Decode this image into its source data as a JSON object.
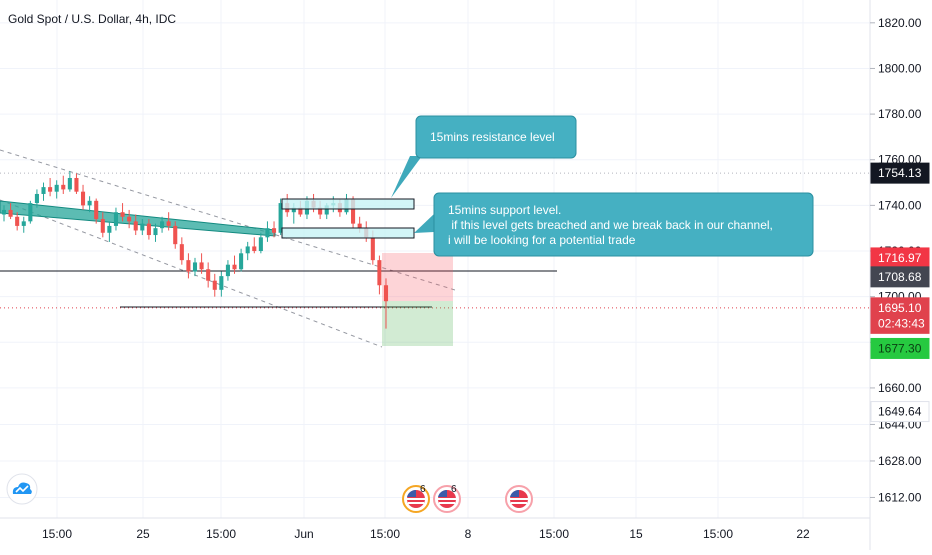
{
  "header": {
    "title": "Gold Spot / U.S. Dollar, 4h, IDC"
  },
  "chart_data": {
    "type": "candlestick",
    "symbol": "Gold Spot / U.S. Dollar",
    "timeframe": "4h",
    "source": "IDC",
    "y_axis": {
      "ylim": [
        1603,
        1830
      ],
      "ticks": [
        1612,
        1628,
        1644,
        1660,
        1680,
        1700,
        1720,
        1740,
        1760,
        1780,
        1800,
        1820
      ],
      "tick_labels": [
        "1612.00",
        "1628.00",
        "1644.00",
        "1660.00",
        "1680.00",
        "1700.00",
        "1720.00",
        "1740.00",
        "1760.00",
        "1780.00",
        "1800.00",
        "1820.00"
      ]
    },
    "x_axis": {
      "tick_labels": [
        "15:00",
        "25",
        "15:00",
        "Jun",
        "15:00",
        "8",
        "15:00",
        "15",
        "15:00",
        "22"
      ]
    },
    "price_labels": [
      {
        "value": 1754.13,
        "text": "1754.13",
        "color": "#131722",
        "text_color": "#ffffff"
      },
      {
        "value": 1716.97,
        "text": "1716.97",
        "color": "#f23645",
        "text_color": "#ffffff"
      },
      {
        "value": 1708.68,
        "text": "1708.68",
        "color": "#434651",
        "text_color": "#ffffff"
      },
      {
        "value": 1695.1,
        "text": "1695.10",
        "color": "#e0424d",
        "text_color": "#ffffff"
      },
      {
        "value": 1688.3,
        "text": "02:43:43",
        "color": "#e0424d",
        "text_color": "#ffffff"
      },
      {
        "value": 1677.3,
        "text": "1677.30",
        "color": "#26c940",
        "text_color": "#0b3d12"
      },
      {
        "value": 1649.64,
        "text": "1649.64",
        "color": "#ffffff",
        "text_color": "#131722"
      }
    ],
    "horizontal_levels": [
      {
        "value": 1754.13,
        "style": "dotted",
        "color": "#b2b5be"
      },
      {
        "value": 1695.1,
        "style": "dotted",
        "color": "#e0424d"
      }
    ],
    "colors": {
      "up": "#26a69a",
      "down": "#ef5350",
      "grid": "#f0f3fa"
    },
    "candles_ohlc": [
      [
        1736,
        1740,
        1733,
        1738
      ],
      [
        1738,
        1741,
        1734,
        1735
      ],
      [
        1735,
        1737,
        1729,
        1731
      ],
      [
        1731,
        1735,
        1728,
        1733
      ],
      [
        1733,
        1742,
        1732,
        1741
      ],
      [
        1741,
        1747,
        1739,
        1745
      ],
      [
        1745,
        1750,
        1742,
        1748
      ],
      [
        1748,
        1752,
        1744,
        1746
      ],
      [
        1746,
        1751,
        1743,
        1749
      ],
      [
        1749,
        1753,
        1745,
        1747
      ],
      [
        1747,
        1755,
        1746,
        1752
      ],
      [
        1752,
        1754,
        1745,
        1746
      ],
      [
        1746,
        1749,
        1738,
        1740
      ],
      [
        1740,
        1744,
        1737,
        1742
      ],
      [
        1742,
        1743,
        1732,
        1734
      ],
      [
        1734,
        1737,
        1726,
        1728
      ],
      [
        1728,
        1733,
        1724,
        1731
      ],
      [
        1731,
        1739,
        1729,
        1737
      ],
      [
        1737,
        1741,
        1733,
        1735
      ],
      [
        1735,
        1738,
        1730,
        1733
      ],
      [
        1733,
        1736,
        1727,
        1729
      ],
      [
        1729,
        1734,
        1727,
        1732
      ],
      [
        1732,
        1734,
        1725,
        1727
      ],
      [
        1727,
        1732,
        1724,
        1730
      ],
      [
        1730,
        1735,
        1728,
        1733
      ],
      [
        1733,
        1737,
        1729,
        1731
      ],
      [
        1731,
        1733,
        1721,
        1723
      ],
      [
        1723,
        1726,
        1714,
        1716
      ],
      [
        1716,
        1719,
        1708,
        1711
      ],
      [
        1711,
        1717,
        1709,
        1715
      ],
      [
        1715,
        1719,
        1710,
        1712
      ],
      [
        1712,
        1715,
        1704,
        1707
      ],
      [
        1707,
        1710,
        1700,
        1703
      ],
      [
        1703,
        1711,
        1700,
        1709
      ],
      [
        1709,
        1716,
        1707,
        1714
      ],
      [
        1714,
        1718,
        1710,
        1712
      ],
      [
        1712,
        1721,
        1711,
        1719
      ],
      [
        1719,
        1724,
        1716,
        1722
      ],
      [
        1722,
        1726,
        1719,
        1720
      ],
      [
        1720,
        1728,
        1719,
        1726
      ],
      [
        1726,
        1733,
        1724,
        1730
      ],
      [
        1730,
        1733,
        1726,
        1728
      ],
      [
        1728,
        1743,
        1727,
        1741
      ],
      [
        1741,
        1745,
        1735,
        1737
      ],
      [
        1737,
        1741,
        1732,
        1739
      ],
      [
        1739,
        1742,
        1735,
        1736
      ],
      [
        1736,
        1744,
        1734,
        1742
      ],
      [
        1742,
        1745,
        1737,
        1739
      ],
      [
        1739,
        1742,
        1734,
        1736
      ],
      [
        1736,
        1741,
        1734,
        1740
      ],
      [
        1740,
        1744,
        1737,
        1741
      ],
      [
        1741,
        1743,
        1735,
        1737
      ],
      [
        1737,
        1745,
        1736,
        1743
      ],
      [
        1743,
        1744,
        1730,
        1732
      ],
      [
        1732,
        1735,
        1728,
        1730
      ],
      [
        1730,
        1733,
        1724,
        1726
      ],
      [
        1726,
        1729,
        1714,
        1716
      ],
      [
        1716,
        1718,
        1701,
        1705
      ],
      [
        1705,
        1708,
        1686,
        1698
      ]
    ],
    "annotations": [
      {
        "text": "15mins resistance level"
      },
      {
        "lines": [
          "15mins support level.",
          " if this level gets breached and we break back in our channel,",
          "i will be looking for a potential trade"
        ]
      }
    ],
    "events": [
      {
        "flag": "us-flag-icon",
        "count": "6"
      },
      {
        "flag": "us-flag-icon",
        "count": "6"
      },
      {
        "flag": "us-flag-icon",
        "count": ""
      }
    ]
  }
}
